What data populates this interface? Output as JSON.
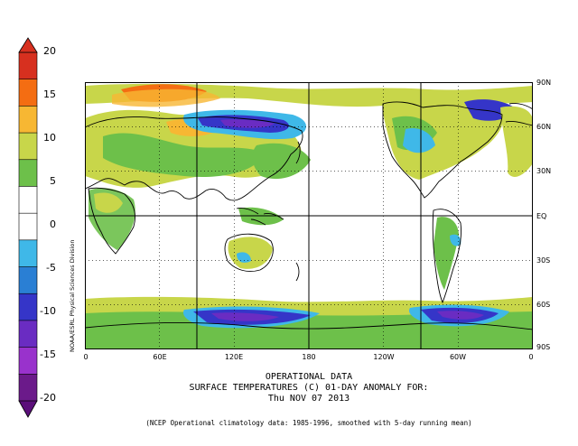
{
  "title": {
    "line1": "OPERATIONAL DATA",
    "line2": "SURFACE TEMPERATURES (C)   01-DAY ANOMALY FOR:",
    "line3": "Thu NOV 07 2013"
  },
  "credit": "NOAA/ESRL Physical Sciences Division",
  "note": "(NCEP Operational climatology data: 1985-1996, smoothed with 5-day running mean)",
  "colorbar": {
    "labels": [
      "20",
      "15",
      "10",
      "5",
      "0",
      "-5",
      "-10",
      "-15",
      "-20"
    ],
    "colors": [
      "#d7301f",
      "#f46d12",
      "#f7b733",
      "#c8d64a",
      "#6dc04a",
      "#ffffff",
      "#ffffff",
      "#3fb8e8",
      "#2a7fd4",
      "#3535c8",
      "#6a2cc2",
      "#9932cc",
      "#6b1a8a"
    ]
  },
  "axes": {
    "lat_labels": [
      "90N",
      "60N",
      "30N",
      "EQ",
      "30S",
      "60S",
      "90S"
    ],
    "lon_labels": [
      "0",
      "60E",
      "120E",
      "180",
      "120W",
      "60W",
      "0"
    ]
  },
  "palette": {
    "warm_strong": "#f46d12",
    "warm": "#f7b733",
    "mild": "#c8d64a",
    "green": "#6dc04a",
    "cool": "#3fb8e8",
    "cold": "#3535c8",
    "very_cold": "#6a2cc2"
  }
}
